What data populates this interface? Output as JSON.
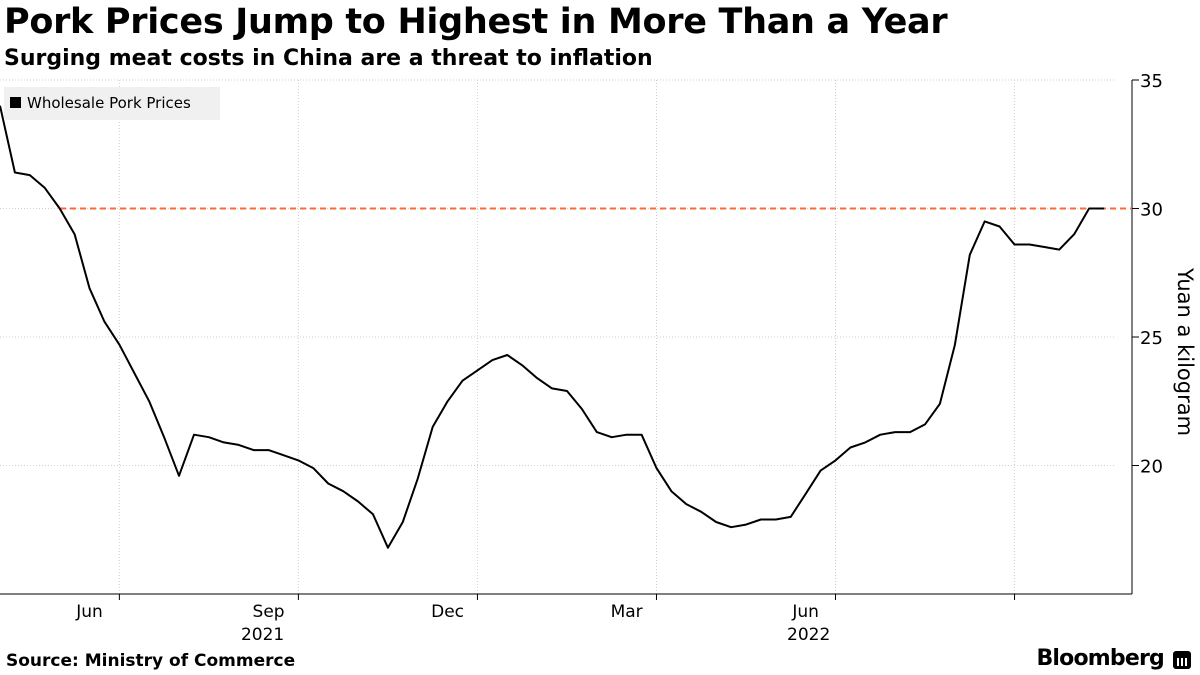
{
  "chart_data": {
    "type": "line",
    "title": "Pork Prices Jump to Highest in More Than a Year",
    "subtitle": "Surging meat costs in China are a threat to inflation",
    "legend": "Wholesale Pork Prices",
    "ylabel": "Yuan a kilogram",
    "ylim": [
      15,
      35
    ],
    "yticks": [
      20,
      25,
      30,
      35
    ],
    "x_axis": {
      "start_month": "2021-04",
      "months_span": 18.7,
      "tick_months": [
        2,
        5,
        8,
        11,
        14,
        17
      ],
      "tick_labels": [
        "Jun",
        "Sep",
        "Dec",
        "Mar",
        "Jun"
      ],
      "tick_label_months": [
        1.5,
        4.5,
        7.5,
        10.5,
        13.5
      ],
      "year_labels": [
        "2021",
        "2022"
      ],
      "year_label_months": [
        4.4,
        13.55
      ]
    },
    "reference_line": {
      "value": 30.0,
      "color": "#ff6a36"
    },
    "line_color": "#000000",
    "series": [
      {
        "name": "Wholesale Pork Prices",
        "x_months": [
          0,
          0.25,
          0.5,
          0.75,
          1.0,
          1.25,
          1.5,
          1.75,
          2.0,
          2.25,
          2.5,
          2.75,
          3.0,
          3.25,
          3.5,
          3.75,
          4.0,
          4.25,
          4.5,
          4.75,
          5.0,
          5.25,
          5.5,
          5.75,
          6.0,
          6.25,
          6.5,
          6.75,
          7.0,
          7.25,
          7.5,
          7.75,
          8.0,
          8.25,
          8.5,
          8.75,
          9.0,
          9.25,
          9.5,
          9.75,
          10.0,
          10.25,
          10.5,
          10.75,
          11.0,
          11.25,
          11.5,
          11.75,
          12.0,
          12.25,
          12.5,
          12.75,
          13.0,
          13.25,
          13.5,
          13.75,
          14.0,
          14.25,
          14.5,
          14.75,
          15.0,
          15.25,
          15.5,
          15.75,
          16.0,
          16.25,
          16.5,
          16.75,
          17.0,
          17.25,
          17.5,
          17.75,
          18.0,
          18.25,
          18.5
        ],
        "values": [
          34.0,
          31.4,
          31.3,
          30.8,
          30.0,
          29.0,
          26.9,
          25.6,
          24.7,
          23.6,
          22.5,
          21.1,
          19.6,
          21.2,
          21.1,
          20.9,
          20.8,
          20.6,
          20.6,
          20.4,
          20.2,
          19.9,
          19.3,
          19.0,
          18.6,
          18.1,
          16.8,
          17.8,
          19.5,
          21.5,
          22.5,
          23.3,
          23.7,
          24.1,
          24.3,
          23.9,
          23.4,
          23.0,
          22.9,
          22.2,
          21.3,
          21.1,
          21.2,
          21.2,
          19.9,
          19.0,
          18.5,
          18.2,
          17.8,
          17.6,
          17.7,
          17.9,
          17.9,
          18.0,
          18.9,
          19.8,
          20.2,
          20.7,
          20.9,
          21.2,
          21.3,
          21.3,
          21.6,
          22.4,
          24.7,
          28.2,
          29.5,
          29.3,
          28.6,
          28.6,
          28.5,
          28.4,
          29.0,
          30.0,
          30.0
        ]
      }
    ]
  },
  "footer": {
    "source": "Source: Ministry of Commerce",
    "brand": "Bloomberg"
  }
}
